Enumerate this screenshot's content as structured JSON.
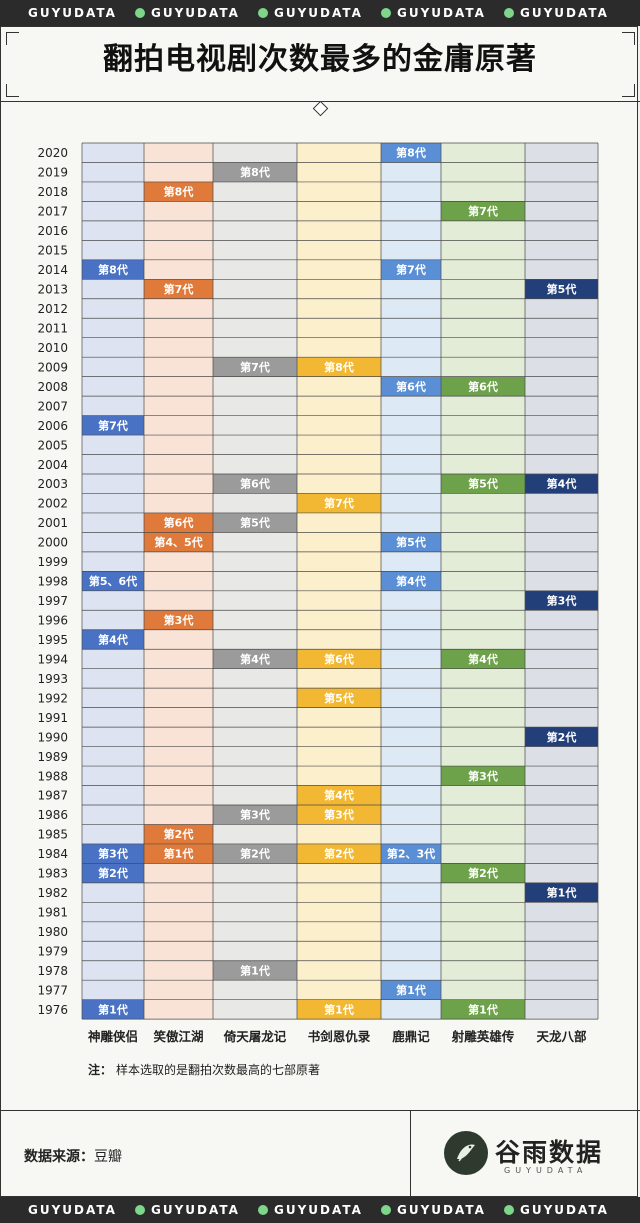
{
  "band_text": "GUYUDATA",
  "title": "翻拍电视剧次数最多的金庸原著",
  "note_label": "注：",
  "note_text": "样本选取的是翻拍次数最高的七部原著",
  "source_label": "数据来源：",
  "source_value": "豆瓣",
  "brand_name": "谷雨数据",
  "brand_sub": "GUYUDATA",
  "chart_data": {
    "type": "table",
    "title": "翻拍电视剧次数最多的金庸原著",
    "years": [
      2020,
      2019,
      2018,
      2017,
      2016,
      2015,
      2014,
      2013,
      2012,
      2011,
      2010,
      2009,
      2008,
      2007,
      2006,
      2005,
      2004,
      2003,
      2002,
      2001,
      2000,
      1999,
      1998,
      1997,
      1996,
      1995,
      1994,
      1993,
      1992,
      1991,
      1990,
      1989,
      1988,
      1987,
      1986,
      1985,
      1984,
      1983,
      1982,
      1981,
      1980,
      1979,
      1978,
      1977,
      1976
    ],
    "series": [
      {
        "name": "神雕侠侣",
        "color": "#4a72c4",
        "bg": "#dde3f0",
        "points": [
          {
            "year": 1976,
            "label": "第1代"
          },
          {
            "year": 1983,
            "label": "第2代"
          },
          {
            "year": 1984,
            "label": "第3代"
          },
          {
            "year": 1995,
            "label": "第4代"
          },
          {
            "year": 1998,
            "label": "第5、6代"
          },
          {
            "year": 2006,
            "label": "第7代"
          },
          {
            "year": 2014,
            "label": "第8代"
          }
        ]
      },
      {
        "name": "笑傲江湖",
        "color": "#e07a3a",
        "bg": "#f8e3d6",
        "points": [
          {
            "year": 1984,
            "label": "第1代"
          },
          {
            "year": 1985,
            "label": "第2代"
          },
          {
            "year": 1996,
            "label": "第3代"
          },
          {
            "year": 2000,
            "label": "第4、5代"
          },
          {
            "year": 2001,
            "label": "第6代"
          },
          {
            "year": 2013,
            "label": "第7代"
          },
          {
            "year": 2018,
            "label": "第8代"
          }
        ]
      },
      {
        "name": "倚天屠龙记",
        "color": "#9b9b9b",
        "bg": "#e8e8e6",
        "points": [
          {
            "year": 1978,
            "label": "第1代"
          },
          {
            "year": 1984,
            "label": "第2代"
          },
          {
            "year": 1986,
            "label": "第3代"
          },
          {
            "year": 1994,
            "label": "第4代"
          },
          {
            "year": 2001,
            "label": "第5代"
          },
          {
            "year": 2003,
            "label": "第6代"
          },
          {
            "year": 2009,
            "label": "第7代"
          },
          {
            "year": 2019,
            "label": "第8代"
          }
        ]
      },
      {
        "name": "书剑恩仇录",
        "color": "#f2b833",
        "bg": "#fcefcc",
        "points": [
          {
            "year": 1976,
            "label": "第1代"
          },
          {
            "year": 1984,
            "label": "第2代"
          },
          {
            "year": 1986,
            "label": "第3代"
          },
          {
            "year": 1987,
            "label": "第4代"
          },
          {
            "year": 1992,
            "label": "第5代"
          },
          {
            "year": 1994,
            "label": "第6代"
          },
          {
            "year": 2002,
            "label": "第7代"
          },
          {
            "year": 2009,
            "label": "第8代"
          }
        ]
      },
      {
        "name": "鹿鼎记",
        "color": "#5a8fd6",
        "bg": "#dde9f4",
        "points": [
          {
            "year": 1977,
            "label": "第1代"
          },
          {
            "year": 1984,
            "label": "第2、3代"
          },
          {
            "year": 1998,
            "label": "第4代"
          },
          {
            "year": 2000,
            "label": "第5代"
          },
          {
            "year": 2008,
            "label": "第6代"
          },
          {
            "year": 2014,
            "label": "第7代"
          },
          {
            "year": 2020,
            "label": "第8代"
          }
        ]
      },
      {
        "name": "射雕英雄传",
        "color": "#6da24a",
        "bg": "#e2ecd6",
        "points": [
          {
            "year": 1976,
            "label": "第1代"
          },
          {
            "year": 1983,
            "label": "第2代"
          },
          {
            "year": 1988,
            "label": "第3代"
          },
          {
            "year": 1994,
            "label": "第4代"
          },
          {
            "year": 2003,
            "label": "第5代"
          },
          {
            "year": 2008,
            "label": "第6代"
          },
          {
            "year": 2017,
            "label": "第7代"
          }
        ]
      },
      {
        "name": "天龙八部",
        "color": "#233f7a",
        "bg": "#dcdfe6",
        "points": [
          {
            "year": 1982,
            "label": "第1代"
          },
          {
            "year": 1990,
            "label": "第2代"
          },
          {
            "year": 1997,
            "label": "第3代"
          },
          {
            "year": 2003,
            "label": "第4代"
          },
          {
            "year": 2013,
            "label": "第5代"
          }
        ]
      }
    ]
  }
}
